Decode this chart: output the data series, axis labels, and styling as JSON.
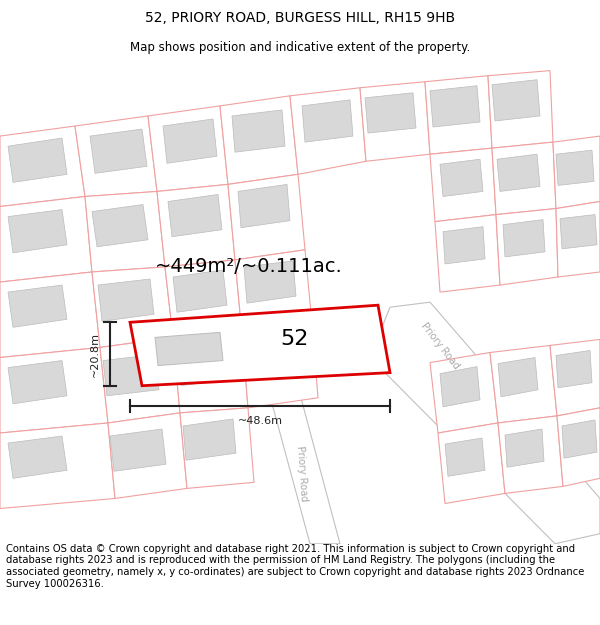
{
  "title_line1": "52, PRIORY ROAD, BURGESS HILL, RH15 9HB",
  "title_line2": "Map shows position and indicative extent of the property.",
  "footer_text": "Contains OS data © Crown copyright and database right 2021. This information is subject to Crown copyright and database rights 2023 and is reproduced with the permission of HM Land Registry. The polygons (including the associated geometry, namely x, y co-ordinates) are subject to Crown copyright and database rights 2023 Ordnance Survey 100026316.",
  "area_label": "~449m²/~0.111ac.",
  "width_label": "~48.6m",
  "height_label": "~20.8m",
  "plot_number": "52",
  "bg_color": "#ffffff",
  "map_bg": "#ffffff",
  "plot_line_color": "#f0a0a0",
  "building_fill_color": "#d8d8d8",
  "building_outline_color": "#bbbbbb",
  "road_outline_color": "#c0c0c0",
  "road_fill_color": "#ffffff",
  "plot52_outline": "#dd0000",
  "plot52_fill": "#ffffff",
  "dim_color": "#222222",
  "road_label_color": "#aaaaaa",
  "title_fontsize": 10,
  "subtitle_fontsize": 8.5,
  "footer_fontsize": 7.2,
  "area_fontsize": 14,
  "num_fontsize": 16
}
